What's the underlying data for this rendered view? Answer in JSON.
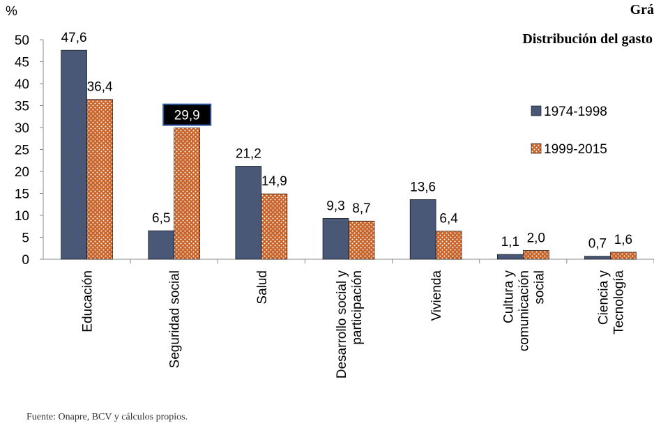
{
  "chart_data": {
    "type": "bar",
    "title": "Grá",
    "subtitle": "Distribución del gasto",
    "y_label": "%",
    "source": "Fuente: Onapre, BCV y cálculos propios.",
    "categories": [
      "Educación",
      "Seguridad social",
      "Salud",
      "Desarrollo social y\nparticipación",
      "Vivienda",
      "Cultura y\ncomunicación\nsocial",
      "Ciencia y\nTecnología"
    ],
    "series": [
      {
        "name": "1974-1998",
        "color": "#4a5878",
        "values": [
          47.6,
          6.5,
          21.2,
          9.3,
          13.6,
          1.1,
          0.7
        ],
        "value_labels": [
          "47,6",
          "6,5",
          "21,2",
          "9,3",
          "13,6",
          "1,1",
          "0,7"
        ]
      },
      {
        "name": "1999-2015",
        "color": "#c9652b",
        "values": [
          36.4,
          29.9,
          14.9,
          8.7,
          6.4,
          2.0,
          1.6
        ],
        "value_labels": [
          "36,4",
          "29,9",
          "14,9",
          "8,7",
          "6,4",
          "2,0",
          "1,6"
        ]
      }
    ],
    "ylim": [
      0,
      50
    ],
    "yticks": [
      0,
      5,
      10,
      15,
      20,
      25,
      30,
      35,
      40,
      45,
      50
    ],
    "grid": false,
    "legend": "right"
  }
}
